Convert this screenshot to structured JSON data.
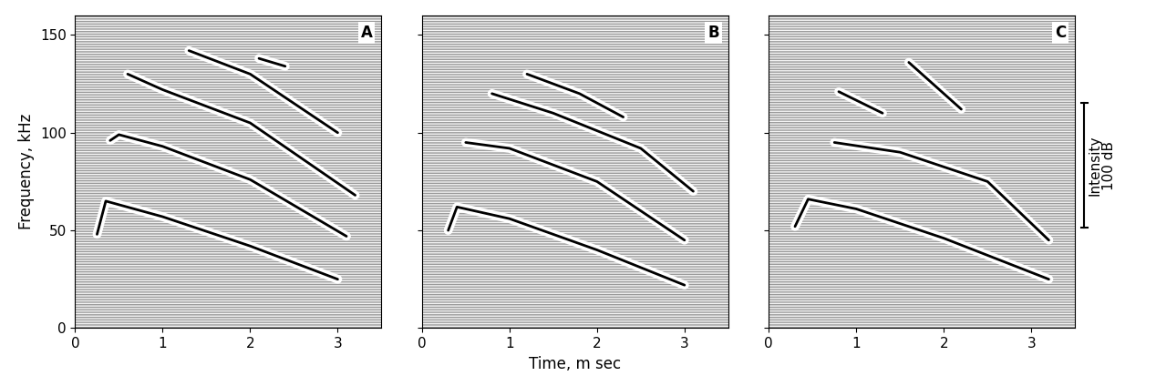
{
  "chart_data": [
    {
      "type": "line",
      "label": "A",
      "y_label": "Frequency, kHz",
      "xlim": [
        0,
        3.5
      ],
      "xticks": [
        0,
        1,
        2,
        3
      ],
      "ylim": [
        0,
        160
      ],
      "yticks": [
        0,
        50,
        100,
        150
      ],
      "color": "#000000",
      "series": [
        {
          "x": [
            0.25,
            0.35,
            1.0,
            2.0,
            3.0
          ],
          "values": [
            48,
            65,
            57,
            42,
            25
          ]
        },
        {
          "x": [
            0.4,
            0.5,
            1.0,
            2.0,
            3.1
          ],
          "values": [
            96,
            99,
            93,
            76,
            47
          ]
        },
        {
          "x": [
            0.6,
            1.0,
            2.0,
            3.2
          ],
          "values": [
            130,
            122,
            105,
            68
          ]
        },
        {
          "x": [
            1.3,
            2.0,
            3.0
          ],
          "values": [
            142,
            130,
            100
          ]
        },
        {
          "x": [
            2.1,
            2.4
          ],
          "values": [
            138,
            134
          ]
        }
      ]
    },
    {
      "type": "line",
      "label": "B",
      "x_label": "Time, m sec",
      "tick_labels": "x",
      "xlim": [
        0,
        3.5
      ],
      "xticks": [
        0,
        1,
        2,
        3
      ],
      "ylim": [
        0,
        160
      ],
      "yticks": [
        0,
        50,
        100,
        150
      ],
      "color": "#000000",
      "series": [
        {
          "x": [
            0.3,
            0.4,
            1.0,
            2.0,
            3.0
          ],
          "values": [
            50,
            62,
            56,
            40,
            22
          ]
        },
        {
          "x": [
            0.5,
            1.0,
            2.0,
            3.0
          ],
          "values": [
            95,
            92,
            75,
            45
          ]
        },
        {
          "x": [
            0.8,
            1.5,
            2.5,
            3.1
          ],
          "values": [
            120,
            110,
            92,
            70
          ]
        },
        {
          "x": [
            1.2,
            1.8,
            2.3
          ],
          "values": [
            130,
            120,
            108
          ]
        }
      ]
    },
    {
      "type": "line",
      "label": "C",
      "tick_labels": "x",
      "xlim": [
        0,
        3.5
      ],
      "xticks": [
        0,
        1,
        2,
        3
      ],
      "ylim": [
        0,
        160
      ],
      "yticks": [
        0,
        50,
        100,
        150
      ],
      "color": "#000000",
      "scale_label": "Intensity",
      "scale_value_label": "100 dB",
      "series": [
        {
          "x": [
            0.3,
            0.45,
            1.0,
            2.0,
            3.2
          ],
          "values": [
            52,
            66,
            61,
            46,
            25
          ]
        },
        {
          "x": [
            0.75,
            1.5,
            2.5,
            3.2
          ],
          "values": [
            95,
            90,
            75,
            45
          ]
        },
        {
          "x": [
            0.8,
            1.3
          ],
          "values": [
            121,
            110
          ]
        },
        {
          "x": [
            1.6,
            2.2
          ],
          "values": [
            136,
            112
          ]
        }
      ]
    }
  ]
}
